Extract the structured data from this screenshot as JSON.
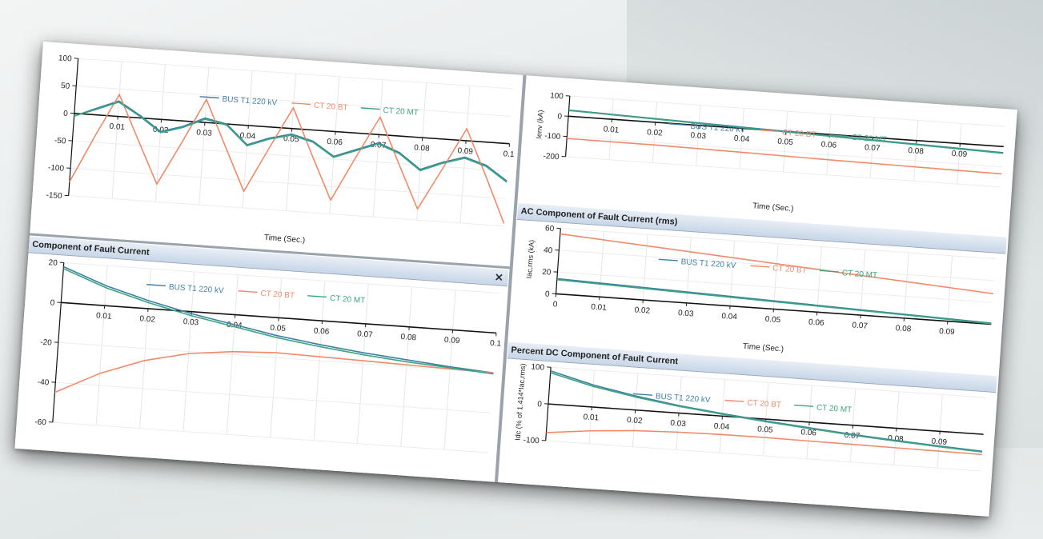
{
  "colors": {
    "bus": "#3f7fa6",
    "ct_bt": "#f08a6a",
    "ct_mt": "#3aa57f"
  },
  "legend": [
    "BUS T1 220 kV",
    "CT 20 BT",
    "CT 20 MT"
  ],
  "chart_data": [
    {
      "id": "tl",
      "type": "line",
      "title": "",
      "xlabel": "Time (Sec.)",
      "ylabel": "",
      "xlim": [
        0,
        0.1
      ],
      "ylim": [
        -150,
        100
      ],
      "xticks": [
        "0.01",
        "0.02",
        "0.03",
        "0.04",
        "0.05",
        "0.06",
        "0.07",
        "0.08",
        "0.09",
        "0.1"
      ],
      "yticks": [
        "100",
        "50",
        "0",
        "-50",
        "-100",
        "-150"
      ],
      "series": [
        {
          "name": "BUS T1 220 kV",
          "x": [
            0,
            0.005,
            0.01,
            0.015,
            0.02,
            0.025,
            0.03,
            0.035,
            0.04,
            0.045,
            0.05,
            0.055,
            0.06,
            0.065,
            0.07,
            0.075,
            0.08,
            0.085,
            0.09,
            0.095,
            0.1
          ],
          "values": [
            -5,
            12,
            28,
            5,
            -22,
            -10,
            8,
            0,
            -35,
            -20,
            -10,
            -20,
            -45,
            -30,
            -15,
            -30,
            -58,
            -42,
            -30,
            -42,
            -68
          ]
        },
        {
          "name": "CT 20 BT",
          "x": [
            0,
            0.005,
            0.01,
            0.015,
            0.02,
            0.025,
            0.03,
            0.035,
            0.04,
            0.045,
            0.05,
            0.055,
            0.06,
            0.065,
            0.07,
            0.075,
            0.08,
            0.085,
            0.09,
            0.095,
            0.1
          ],
          "values": [
            -125,
            -40,
            40,
            -40,
            -118,
            -40,
            42,
            -40,
            -120,
            -40,
            38,
            -45,
            -125,
            -45,
            32,
            -50,
            -130,
            -55,
            22,
            -60,
            -145
          ]
        },
        {
          "name": "CT 20 MT",
          "x": [
            0,
            0.005,
            0.01,
            0.015,
            0.02,
            0.025,
            0.03,
            0.035,
            0.04,
            0.045,
            0.05,
            0.055,
            0.06,
            0.065,
            0.07,
            0.075,
            0.08,
            0.085,
            0.09,
            0.095,
            0.1
          ],
          "values": [
            -5,
            10,
            26,
            3,
            -24,
            -12,
            6,
            -2,
            -37,
            -22,
            -12,
            -22,
            -47,
            -32,
            -17,
            -32,
            -60,
            -44,
            -32,
            -44,
            -70
          ]
        }
      ]
    },
    {
      "id": "bl",
      "type": "line",
      "title": "Component of Fault Current",
      "xlabel": "",
      "ylabel": "",
      "xlim": [
        0,
        0.1
      ],
      "ylim": [
        -60,
        20
      ],
      "xticks": [
        "0.01",
        "0.02",
        "0.03",
        "0.04",
        "0.05",
        "0.06",
        "0.07",
        "0.08",
        "0.09",
        "0.1"
      ],
      "yticks": [
        "20",
        "0",
        "-20",
        "-40",
        "-60"
      ],
      "series": [
        {
          "name": "BUS T1 220 kV",
          "x": [
            0,
            0.01,
            0.02,
            0.03,
            0.04,
            0.05,
            0.06,
            0.07,
            0.08,
            0.09,
            0.1
          ],
          "values": [
            18,
            10,
            4,
            -1,
            -5,
            -9,
            -12,
            -14.5,
            -16.5,
            -18.5,
            -20
          ]
        },
        {
          "name": "CT 20 BT",
          "x": [
            0,
            0.01,
            0.02,
            0.03,
            0.04,
            0.05,
            0.06,
            0.07,
            0.08,
            0.09,
            0.1
          ],
          "values": [
            -45,
            -34,
            -26,
            -21,
            -18.5,
            -17.5,
            -18,
            -18.5,
            -19,
            -19.5,
            -20
          ]
        },
        {
          "name": "CT 20 MT",
          "x": [
            0,
            0.01,
            0.02,
            0.03,
            0.04,
            0.05,
            0.06,
            0.07,
            0.08,
            0.09,
            0.1
          ],
          "values": [
            17,
            9,
            3,
            -2,
            -6,
            -10,
            -13,
            -15.5,
            -17.5,
            -19,
            -20.5
          ]
        }
      ]
    },
    {
      "id": "tr",
      "type": "line",
      "title": "",
      "xlabel": "Time (Sec.)",
      "ylabel": "Ienv (kA)",
      "xlim": [
        0,
        0.1
      ],
      "ylim": [
        -200,
        100
      ],
      "xticks": [
        "0.01",
        "0.02",
        "0.03",
        "0.04",
        "0.05",
        "0.06",
        "0.07",
        "0.08",
        "0.09"
      ],
      "yticks": [
        "100",
        "0",
        "-100",
        "-200"
      ],
      "series": [
        {
          "name": "BUS T1 220 kV",
          "x": [
            0,
            0.1
          ],
          "values": [
            30,
            -30
          ]
        },
        {
          "name": "CT 20 BT",
          "x": [
            0,
            0.02,
            0.04,
            0.06,
            0.08,
            0.1
          ],
          "values": [
            -110,
            -112,
            -118,
            -125,
            -130,
            -135
          ]
        },
        {
          "name": "CT 20 MT",
          "x": [
            0,
            0.1
          ],
          "values": [
            28,
            -33
          ]
        }
      ]
    },
    {
      "id": "mr",
      "type": "line",
      "title": "AC Component of Fault Current (rms)",
      "xlabel": "Time (Sec.)",
      "ylabel": "Iac,rms (kA)",
      "xlim": [
        0,
        0.1
      ],
      "ylim": [
        0,
        60
      ],
      "xticks": [
        "0",
        "0.01",
        "0.02",
        "0.03",
        "0.04",
        "0.05",
        "0.06",
        "0.07",
        "0.08",
        "0.09"
      ],
      "yticks": [
        "60",
        "40",
        "20",
        "0"
      ],
      "series": [
        {
          "name": "BUS T1 220 kV",
          "x": [
            0,
            0.1
          ],
          "values": [
            14,
            1
          ]
        },
        {
          "name": "CT 20 BT",
          "x": [
            0,
            0.1
          ],
          "values": [
            55,
            28
          ]
        },
        {
          "name": "CT 20 MT",
          "x": [
            0,
            0.1
          ],
          "values": [
            13,
            0.5
          ]
        }
      ]
    },
    {
      "id": "br",
      "type": "line",
      "title": "Percent DC Component of Fault Current",
      "xlabel": "",
      "ylabel": "Idc (% of 1.414*Iac,rms)",
      "xlim": [
        0,
        0.1
      ],
      "ylim": [
        -100,
        100
      ],
      "xticks": [
        "0.01",
        "0.02",
        "0.03",
        "0.04",
        "0.05",
        "0.06",
        "0.07",
        "0.08",
        "0.09"
      ],
      "yticks": [
        "100",
        "0",
        "-100"
      ],
      "series": [
        {
          "name": "BUS T1 220 kV",
          "x": [
            0,
            0.01,
            0.02,
            0.03,
            0.04,
            0.05,
            0.06,
            0.07,
            0.08,
            0.09,
            0.1
          ],
          "values": [
            90,
            60,
            38,
            20,
            7,
            -5,
            -15,
            -25,
            -33,
            -40,
            -46
          ]
        },
        {
          "name": "CT 20 BT",
          "x": [
            0,
            0.01,
            0.02,
            0.03,
            0.04,
            0.05,
            0.06,
            0.07,
            0.08,
            0.09,
            0.1
          ],
          "values": [
            -78,
            -65,
            -56,
            -52,
            -50,
            -50,
            -51,
            -52,
            -53,
            -54,
            -55
          ]
        },
        {
          "name": "CT 20 MT",
          "x": [
            0,
            0.01,
            0.02,
            0.03,
            0.04,
            0.05,
            0.06,
            0.07,
            0.08,
            0.09,
            0.1
          ],
          "values": [
            85,
            56,
            35,
            18,
            5,
            -7,
            -17,
            -27,
            -35,
            -42,
            -48
          ]
        }
      ]
    }
  ]
}
